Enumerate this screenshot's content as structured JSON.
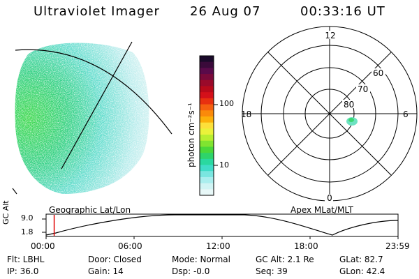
{
  "header": {
    "instrument": "Ultraviolet Imager",
    "date": "26 Aug 07",
    "time": "00:33:16 UT"
  },
  "colorbar": {
    "label": "photon cm⁻²s⁻¹",
    "ticks": [
      "100",
      "10"
    ],
    "colors": [
      "#1a0a2a",
      "#3a0a3a",
      "#5a0a4a",
      "#7a0a3a",
      "#9a0a2a",
      "#b80a1a",
      "#d4101a",
      "#e83010",
      "#f56010",
      "#fa8a0a",
      "#fcb00a",
      "#fde03a",
      "#eaf23a",
      "#b8ee30",
      "#80e430",
      "#4ad83a",
      "#2ed46a",
      "#2ad8a0",
      "#40dcc8",
      "#7ae6e0",
      "#aaeeee",
      "#d0f4f4",
      "#e8f8f8"
    ]
  },
  "polar": {
    "hour_labels": {
      "top": "12",
      "left": "18",
      "right": "6",
      "bottom": "0"
    },
    "lat_labels": [
      "60",
      "70",
      "80"
    ]
  },
  "timeline": {
    "ylabel": "GC Alt",
    "yticks": [
      "9.0",
      "1.8"
    ],
    "left_label": "Geographic Lat/Lon",
    "right_label": "Apex  MLat/MLT",
    "xticks": [
      "00:00",
      "06:00",
      "12:00",
      "18:00",
      "23:59"
    ],
    "marker_fraction": 0.023
  },
  "info": {
    "filter": "Flt: LBHL",
    "ip": "IP: 36.0",
    "door": "Door: Closed",
    "gain": "Gain: 14",
    "mode": "Mode: Normal",
    "dsp": "Dsp:   -0.0",
    "gc_alt": "GC Alt: 2.1 Re",
    "seq": "Seq: 39",
    "glat": "GLat:  82.7",
    "glon": "GLon:  42.4"
  }
}
